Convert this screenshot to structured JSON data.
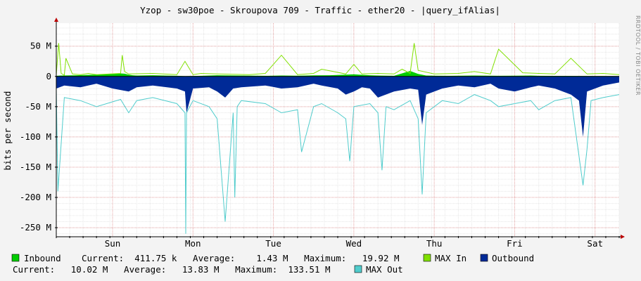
{
  "chart_data": {
    "type": "area",
    "title": "Yzop - sw30poe - Skroupova 709 - Traffic - ether20 - |query_ifAlias|",
    "ylabel": "bits per second",
    "watermark": "RRDTOOL / TOBI OETIKER",
    "ylim": [
      -265000000,
      88000000
    ],
    "yticks": [
      {
        "value": 50000000,
        "label": "50 M"
      },
      {
        "value": 0,
        "label": "0"
      },
      {
        "value": -50000000,
        "label": "-50 M"
      },
      {
        "value": -100000000,
        "label": "-100 M"
      },
      {
        "value": -150000000,
        "label": "-150 M"
      },
      {
        "value": -200000000,
        "label": "-200 M"
      },
      {
        "value": -250000000,
        "label": "-250 M"
      }
    ],
    "xlim": [
      0,
      7
    ],
    "x_unit": "days",
    "xticks": [
      {
        "value": 0.7,
        "label": "Sun"
      },
      {
        "value": 1.7,
        "label": "Mon"
      },
      {
        "value": 2.7,
        "label": "Tue"
      },
      {
        "value": 3.7,
        "label": "Wed"
      },
      {
        "value": 4.7,
        "label": "Thu"
      },
      {
        "value": 5.7,
        "label": "Fri"
      },
      {
        "value": 6.7,
        "label": "Sat"
      }
    ],
    "grid": true,
    "series": [
      {
        "name": "Inbound",
        "color": "#00cc00",
        "style": "area",
        "x": [
          0.0,
          0.05,
          0.25,
          0.5,
          0.7,
          0.8,
          0.85,
          0.9,
          0.95,
          1.0,
          1.2,
          1.5,
          1.6,
          1.8,
          2.0,
          2.3,
          2.6,
          2.8,
          3.0,
          3.2,
          3.4,
          3.6,
          3.7,
          3.9,
          4.0,
          4.2,
          4.4,
          4.5,
          4.6,
          4.7,
          4.9,
          5.0,
          5.2,
          5.5,
          5.7,
          5.9,
          6.0,
          6.2,
          6.5,
          6.7,
          7.0
        ],
        "values": [
          1000000,
          1500000,
          2000000,
          3000000,
          4000000,
          5000000,
          4500000,
          3000000,
          2000000,
          1500000,
          2000000,
          1000000,
          500000,
          1000000,
          2000000,
          1500000,
          1000000,
          1500000,
          1200000,
          1800000,
          2000000,
          3000000,
          3500000,
          2000000,
          1500000,
          1000000,
          9000000,
          4000000,
          1500000,
          1200000,
          1000000,
          1200000,
          1500000,
          1000000,
          1200000,
          1500000,
          1000000,
          900000,
          800000,
          600000,
          400000
        ]
      },
      {
        "name": "MAX In",
        "color": "#80e000",
        "style": "line",
        "x": [
          0.0,
          0.03,
          0.06,
          0.1,
          0.12,
          0.2,
          0.3,
          0.4,
          0.5,
          0.8,
          0.82,
          0.85,
          0.9,
          1.2,
          1.5,
          1.6,
          1.7,
          1.8,
          2.0,
          2.4,
          2.6,
          2.8,
          3.0,
          3.2,
          3.3,
          3.6,
          3.7,
          3.8,
          4.0,
          4.2,
          4.3,
          4.4,
          4.45,
          4.5,
          4.7,
          5.0,
          5.2,
          5.4,
          5.5,
          5.8,
          6.0,
          6.2,
          6.4,
          6.6,
          6.8,
          7.0
        ],
        "values": [
          3000000,
          55000000,
          5000000,
          2000000,
          30000000,
          4000000,
          3000000,
          5000000,
          3000000,
          5000000,
          35000000,
          8000000,
          4000000,
          5000000,
          3000000,
          25000000,
          3000000,
          5000000,
          4000000,
          3000000,
          5000000,
          35000000,
          3000000,
          5000000,
          12000000,
          4000000,
          20000000,
          4000000,
          5000000,
          4000000,
          12000000,
          5000000,
          55000000,
          10000000,
          4000000,
          5000000,
          8000000,
          4000000,
          45000000,
          6000000,
          5000000,
          4000000,
          30000000,
          4000000,
          5000000,
          3000000
        ]
      },
      {
        "name": "Outbound",
        "color": "#002a97",
        "style": "area",
        "x": [
          0.0,
          0.1,
          0.3,
          0.5,
          0.7,
          0.9,
          1.0,
          1.2,
          1.5,
          1.6,
          1.62,
          1.7,
          1.9,
          2.0,
          2.1,
          2.2,
          2.3,
          2.6,
          2.8,
          3.0,
          3.2,
          3.3,
          3.5,
          3.6,
          3.7,
          3.8,
          3.9,
          4.0,
          4.2,
          4.4,
          4.5,
          4.55,
          4.6,
          4.8,
          5.0,
          5.2,
          5.4,
          5.5,
          5.7,
          5.9,
          6.0,
          6.2,
          6.4,
          6.5,
          6.55,
          6.6,
          6.8,
          7.0
        ],
        "values": [
          -20000000,
          -15000000,
          -18000000,
          -12000000,
          -20000000,
          -25000000,
          -18000000,
          -15000000,
          -20000000,
          -25000000,
          -60000000,
          -20000000,
          -18000000,
          -25000000,
          -35000000,
          -20000000,
          -18000000,
          -15000000,
          -20000000,
          -18000000,
          -12000000,
          -15000000,
          -20000000,
          -30000000,
          -25000000,
          -18000000,
          -20000000,
          -35000000,
          -25000000,
          -20000000,
          -22000000,
          -80000000,
          -30000000,
          -20000000,
          -15000000,
          -18000000,
          -12000000,
          -20000000,
          -25000000,
          -18000000,
          -15000000,
          -20000000,
          -30000000,
          -40000000,
          -100000000,
          -25000000,
          -15000000,
          -10000000
        ]
      },
      {
        "name": "MAX Out",
        "color": "#50cccc",
        "style": "line",
        "x": [
          0.0,
          0.02,
          0.1,
          0.3,
          0.5,
          0.8,
          0.9,
          1.0,
          1.2,
          1.5,
          1.6,
          1.61,
          1.62,
          1.7,
          1.9,
          2.0,
          2.1,
          2.2,
          2.22,
          2.25,
          2.3,
          2.6,
          2.8,
          3.0,
          3.05,
          3.2,
          3.3,
          3.5,
          3.6,
          3.65,
          3.7,
          3.9,
          4.0,
          4.05,
          4.1,
          4.2,
          4.4,
          4.5,
          4.55,
          4.6,
          4.8,
          5.0,
          5.2,
          5.4,
          5.5,
          5.7,
          5.9,
          6.0,
          6.2,
          6.4,
          6.55,
          6.6,
          6.65,
          6.8,
          7.0
        ],
        "values": [
          -20000000,
          -190000000,
          -35000000,
          -40000000,
          -50000000,
          -38000000,
          -60000000,
          -40000000,
          -35000000,
          -45000000,
          -60000000,
          -260000000,
          -60000000,
          -40000000,
          -50000000,
          -70000000,
          -240000000,
          -60000000,
          -200000000,
          -50000000,
          -40000000,
          -45000000,
          -60000000,
          -55000000,
          -125000000,
          -50000000,
          -45000000,
          -60000000,
          -70000000,
          -140000000,
          -50000000,
          -45000000,
          -60000000,
          -155000000,
          -50000000,
          -55000000,
          -40000000,
          -70000000,
          -195000000,
          -60000000,
          -40000000,
          -45000000,
          -30000000,
          -40000000,
          -50000000,
          -45000000,
          -40000000,
          -55000000,
          -40000000,
          -35000000,
          -180000000,
          -120000000,
          -40000000,
          -35000000,
          -30000000
        ]
      }
    ]
  },
  "legend": {
    "inbound": {
      "name": "Inbound",
      "color": "#00cc00"
    },
    "inbound_stats": "Current:  411.75 k   Average:    1.43 M   Maximum:   19.92 M",
    "max_in": {
      "name": "MAX In",
      "color": "#80e000"
    },
    "outbound": {
      "name": "Outbound",
      "color": "#002a97"
    },
    "outbound_stats": "Current:   10.02 M   Average:   13.83 M   Maximum:  133.51 M",
    "max_out": {
      "name": "MAX Out",
      "color": "#50cccc"
    }
  }
}
